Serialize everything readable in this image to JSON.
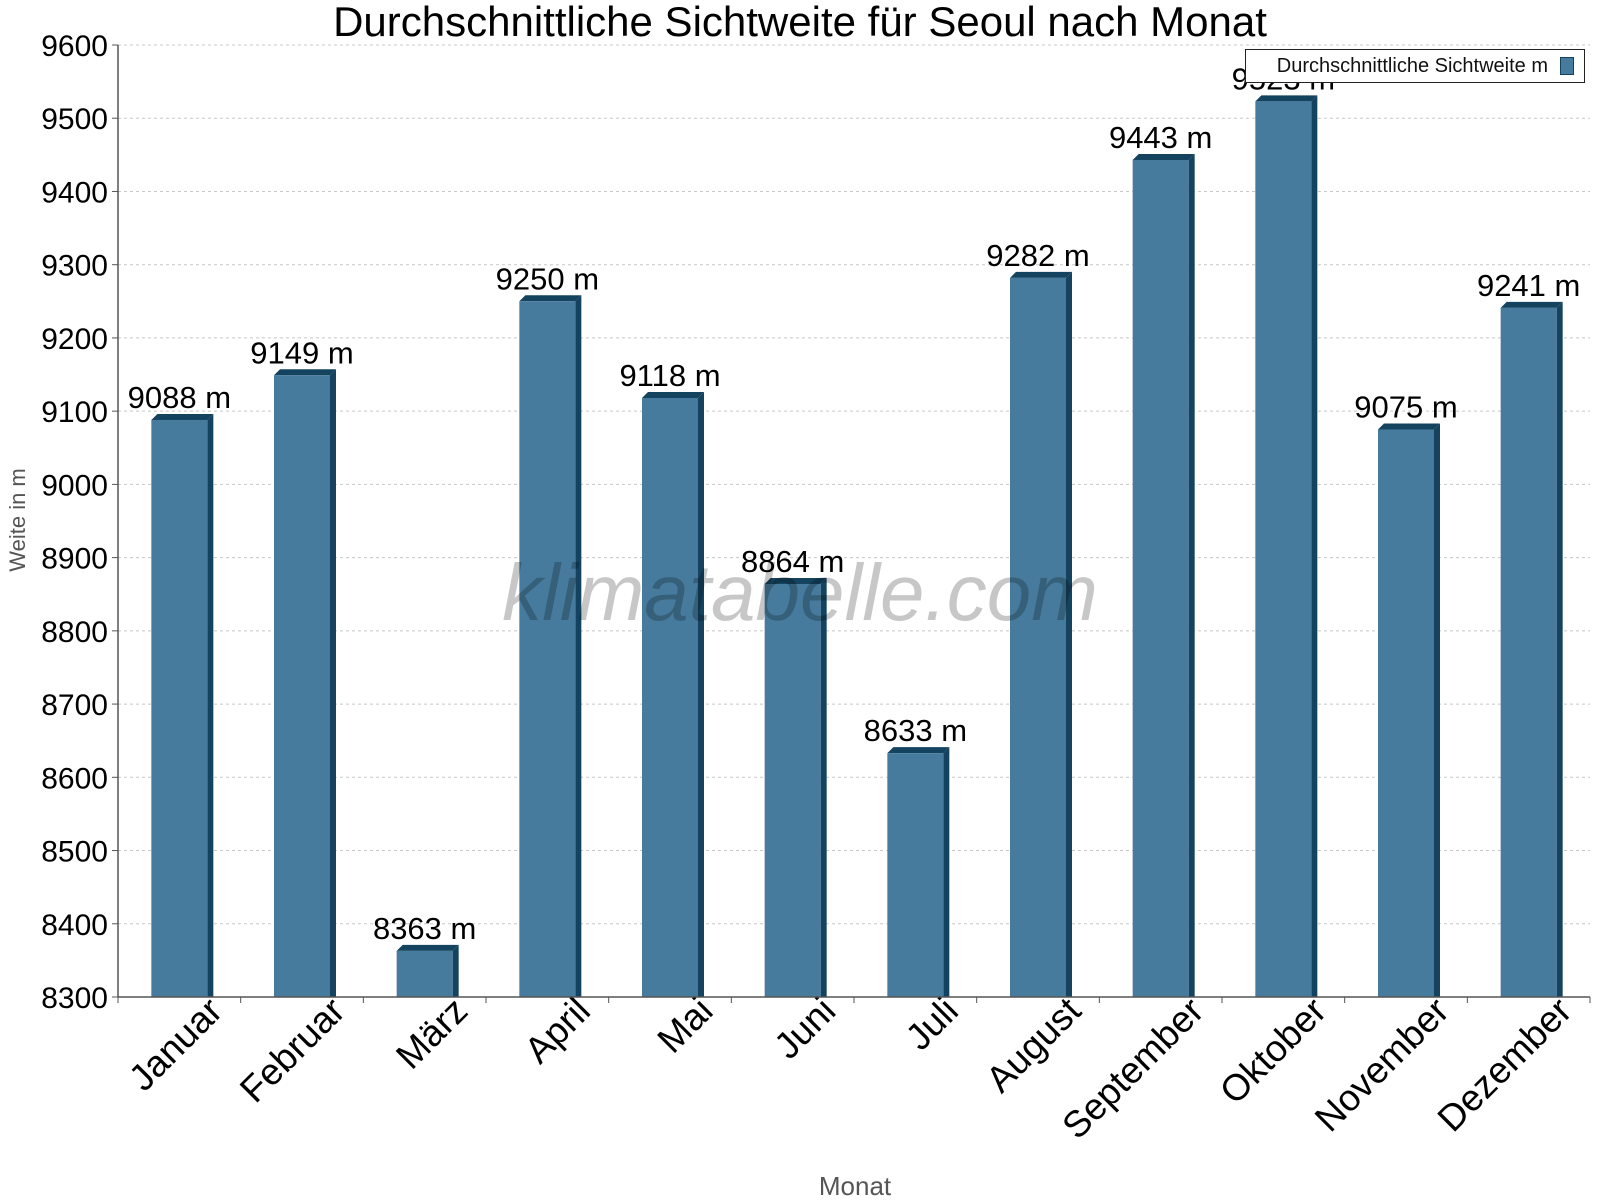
{
  "chart_data": {
    "type": "bar",
    "title": "Durchschnittliche Sichtweite für Seoul nach Monat",
    "xlabel": "Monat",
    "ylabel": "Weite in m",
    "ylim": [
      8300,
      9600
    ],
    "yticks": [
      8300,
      8400,
      8500,
      8600,
      8700,
      8800,
      8900,
      9000,
      9100,
      9200,
      9300,
      9400,
      9500,
      9600
    ],
    "grid": true,
    "legend_position": "top-right",
    "value_suffix": " m",
    "categories": [
      "Januar",
      "Februar",
      "März",
      "April",
      "Mai",
      "Juni",
      "Juli",
      "August",
      "September",
      "Oktober",
      "November",
      "Dezember"
    ],
    "series": [
      {
        "name": "Durchschnittliche Sichtweite m",
        "values": [
          9088,
          9149,
          8363,
          9250,
          9118,
          8864,
          8633,
          9282,
          9443,
          9523,
          9075,
          9241
        ]
      }
    ],
    "colors": {
      "bar": "#467b9d",
      "bar_dark": "#14435f",
      "grid": "#c8c8c8",
      "axis": "#555555"
    }
  },
  "watermark": "klimatabelle.com"
}
